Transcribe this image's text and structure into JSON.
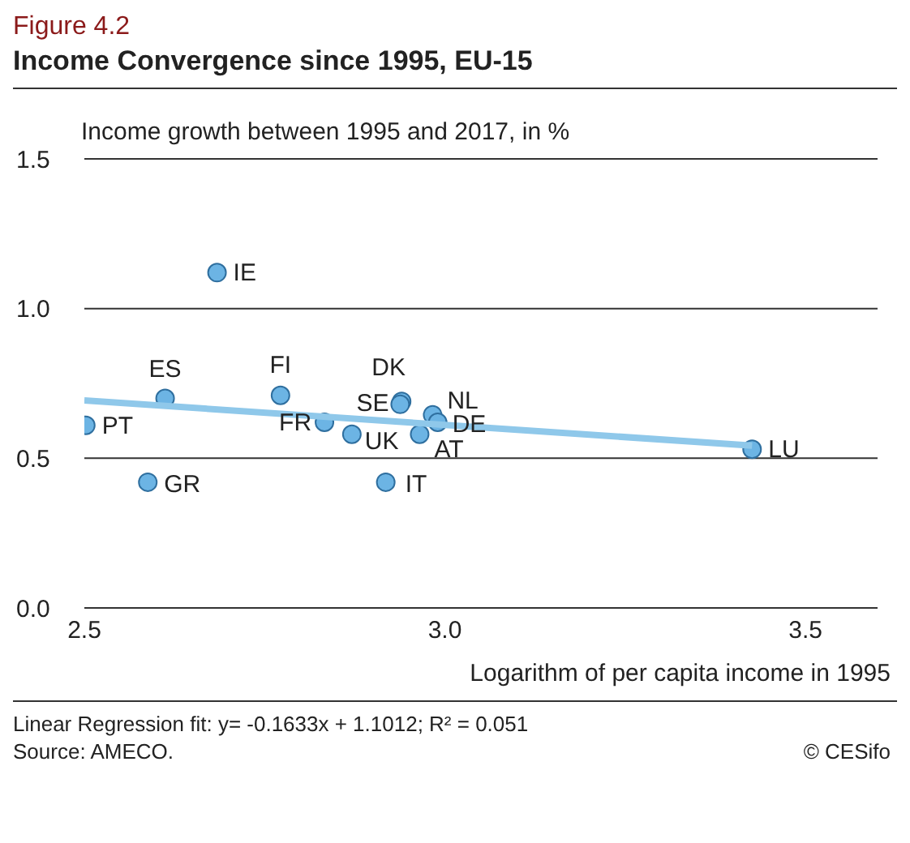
{
  "chart_data": {
    "type": "scatter",
    "subtitle": "Figure 4.2",
    "title": "Income Convergence since 1995, EU-15",
    "ylabel": "Income growth between 1995 and 2017, in %",
    "xlabel": "Logarithm of per capita income in 1995",
    "series": [
      {
        "color": "#6cb4e4",
        "marker": "circle",
        "x": [
          2.684,
          2.612,
          2.772,
          2.502,
          2.833,
          2.588,
          2.94,
          2.938,
          2.983,
          2.99,
          2.871,
          2.965,
          2.918,
          3.426
        ],
        "values": [
          1.12,
          0.7,
          0.71,
          0.61,
          0.62,
          0.42,
          0.69,
          0.68,
          0.645,
          0.62,
          0.58,
          0.58,
          0.42,
          0.53
        ]
      },
      {
        "type": "line",
        "color": "#8fc8ea",
        "x": [
          2.5,
          3.426
        ],
        "values": [
          0.693,
          0.542
        ]
      }
    ],
    "xlim": [
      2.5,
      3.6
    ],
    "xticks": [
      2.5,
      {
        "value": 3,
        "label": "3.0"
      },
      3.5
    ],
    "ylim": [
      0,
      1.5
    ],
    "yticks": [
      {
        "value": 0,
        "label": "0.0"
      },
      0.5,
      {
        "value": 1,
        "label": "1.0"
      },
      1.5
    ],
    "grid": "y",
    "annotations": [
      {
        "text": "IE",
        "x": 2.684,
        "y": 1.12
      },
      {
        "text": "ES",
        "x": 2.612,
        "y": 0.7
      },
      {
        "text": "FI",
        "x": 2.772,
        "y": 0.71
      },
      {
        "text": "PT",
        "x": 2.502,
        "y": 0.61
      },
      {
        "text": "FR",
        "x": 2.833,
        "y": 0.62
      },
      {
        "text": "GR",
        "x": 2.588,
        "y": 0.42
      },
      {
        "text": "DK",
        "x": 2.94,
        "y": 0.69
      },
      {
        "text": "SE",
        "x": 2.938,
        "y": 0.68
      },
      {
        "text": "NL",
        "x": 2.983,
        "y": 0.645
      },
      {
        "text": "DE",
        "x": 2.99,
        "y": 0.62
      },
      {
        "text": "UK",
        "x": 2.871,
        "y": 0.58
      },
      {
        "text": "AT",
        "x": 2.965,
        "y": 0.58
      },
      {
        "text": "IT",
        "x": 2.918,
        "y": 0.42
      },
      {
        "text": "LU",
        "x": 3.426,
        "y": 0.53
      },
      "Linear Regression fit: y= -0.1633x + 1.1012; R² = 0.051",
      "Source: AMECO.",
      "© CESifo"
    ]
  }
}
